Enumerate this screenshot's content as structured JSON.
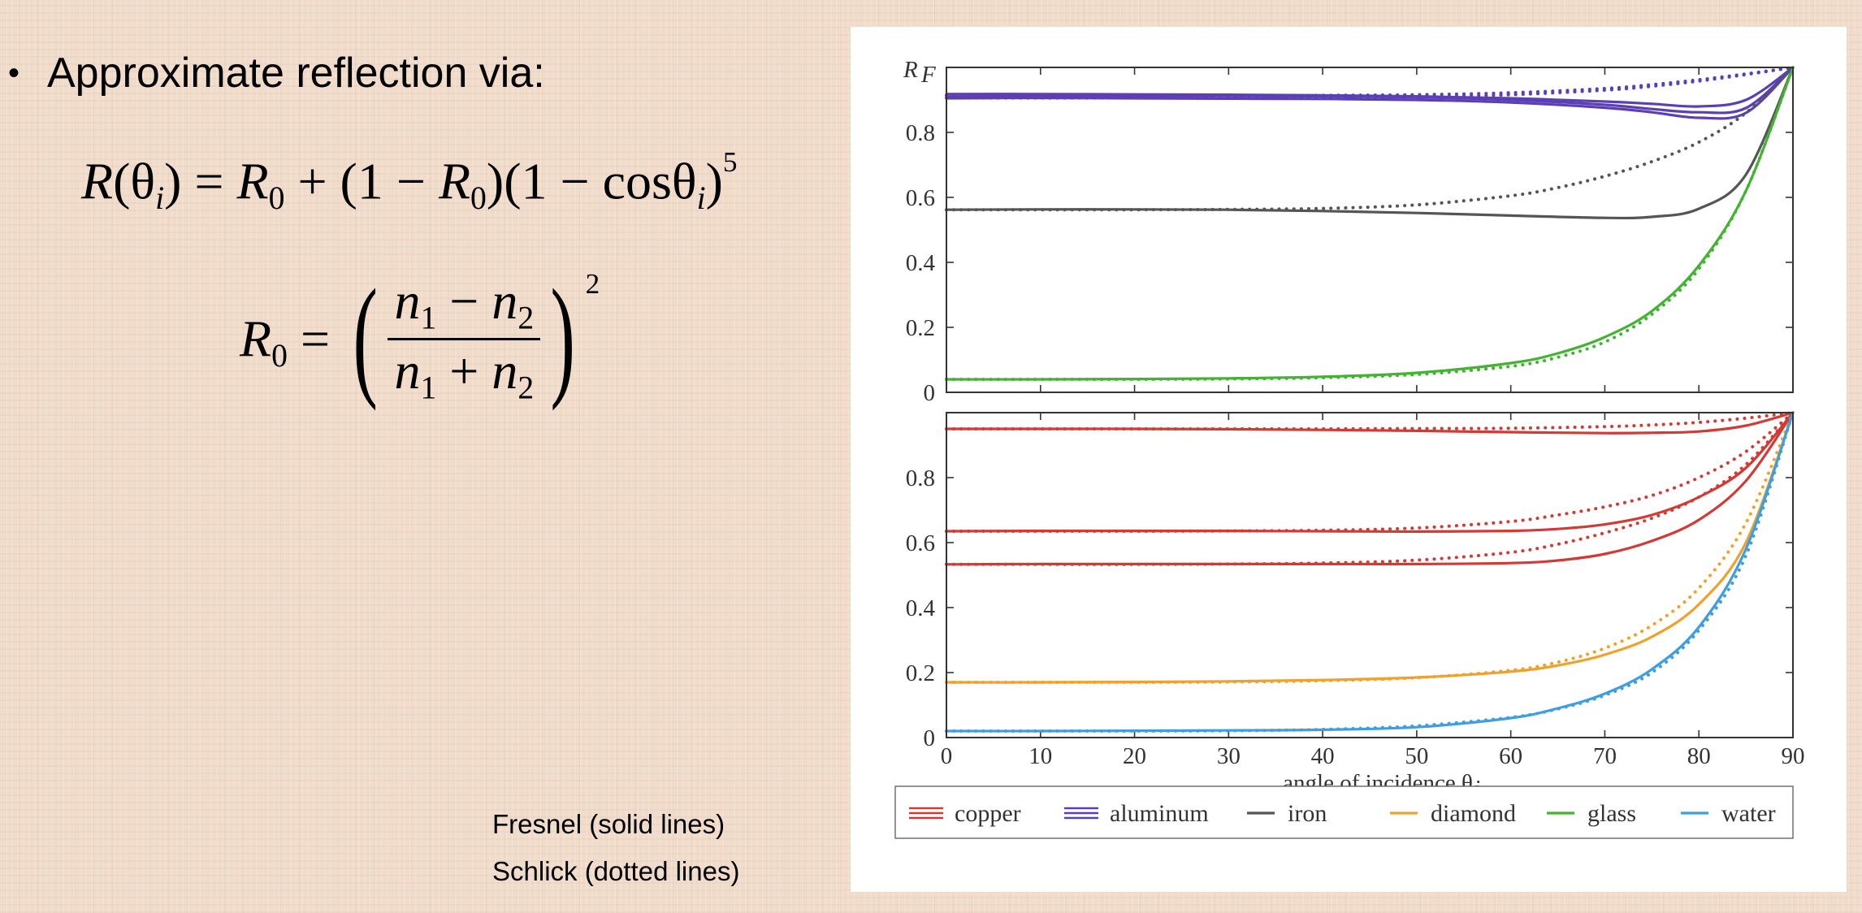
{
  "slide": {
    "bullet_text": "Approximate reflection via:",
    "notes": {
      "line1": "Fresnel (solid lines)",
      "line2": "Schlick (dotted lines)"
    }
  },
  "chart_data": [
    {
      "type": "line",
      "panel": "top",
      "ylabel": "R",
      "ylabel_sub": "F",
      "xlim": [
        0,
        90
      ],
      "ylim": [
        0,
        1
      ],
      "y_ticks": [
        "0",
        "0.2",
        "0.4",
        "0.6",
        "0.8"
      ],
      "y_tick_values": [
        0,
        0.2,
        0.4,
        0.6,
        0.8
      ],
      "grid": false,
      "series": [
        {
          "name": "aluminum",
          "color": "#5b3fb5",
          "style": "solid",
          "x": [
            0,
            10,
            20,
            30,
            40,
            50,
            60,
            70,
            75,
            80,
            85,
            90
          ],
          "y": [
            0.91,
            0.912,
            0.912,
            0.912,
            0.911,
            0.908,
            0.9,
            0.885,
            0.872,
            0.862,
            0.875,
            1.0
          ]
        },
        {
          "name": "aluminum",
          "color": "#5b3fb5",
          "style": "solid",
          "x": [
            0,
            10,
            20,
            30,
            40,
            50,
            60,
            70,
            75,
            80,
            85,
            90
          ],
          "y": [
            0.918,
            0.918,
            0.917,
            0.916,
            0.914,
            0.911,
            0.905,
            0.895,
            0.888,
            0.88,
            0.9,
            1.0
          ]
        },
        {
          "name": "aluminum",
          "color": "#5b3fb5",
          "style": "solid",
          "x": [
            0,
            10,
            20,
            30,
            40,
            50,
            60,
            70,
            75,
            80,
            85,
            90
          ],
          "y": [
            0.905,
            0.906,
            0.905,
            0.904,
            0.903,
            0.9,
            0.892,
            0.876,
            0.862,
            0.845,
            0.86,
            1.0
          ]
        },
        {
          "name": "aluminum",
          "color": "#5b3fb5",
          "style": "dotted",
          "x": [
            0,
            10,
            20,
            30,
            40,
            50,
            60,
            70,
            75,
            80,
            85,
            90
          ],
          "y": [
            0.913,
            0.913,
            0.913,
            0.913,
            0.914,
            0.916,
            0.922,
            0.935,
            0.947,
            0.962,
            0.98,
            1.0
          ]
        },
        {
          "name": "aluminum",
          "color": "#5b3fb5",
          "style": "dotted",
          "x": [
            0,
            10,
            20,
            30,
            40,
            50,
            60,
            70,
            75,
            80,
            85,
            90
          ],
          "y": [
            0.906,
            0.906,
            0.906,
            0.906,
            0.907,
            0.909,
            0.916,
            0.93,
            0.942,
            0.958,
            0.978,
            1.0
          ]
        },
        {
          "name": "iron",
          "color": "#555555",
          "style": "solid",
          "x": [
            0,
            10,
            20,
            30,
            40,
            50,
            60,
            70,
            75,
            80,
            85,
            90
          ],
          "y": [
            0.562,
            0.563,
            0.563,
            0.562,
            0.558,
            0.552,
            0.544,
            0.537,
            0.54,
            0.565,
            0.67,
            1.0
          ]
        },
        {
          "name": "iron",
          "color": "#555555",
          "style": "dotted",
          "x": [
            0,
            10,
            20,
            30,
            40,
            50,
            60,
            65,
            70,
            75,
            80,
            85,
            90
          ],
          "y": [
            0.562,
            0.562,
            0.562,
            0.563,
            0.566,
            0.577,
            0.605,
            0.63,
            0.665,
            0.71,
            0.77,
            0.86,
            1.0
          ]
        },
        {
          "name": "glass",
          "color": "#44b233",
          "style": "solid",
          "x": [
            0,
            10,
            20,
            30,
            40,
            50,
            60,
            65,
            70,
            75,
            80,
            85,
            90
          ],
          "y": [
            0.04,
            0.04,
            0.041,
            0.043,
            0.048,
            0.06,
            0.09,
            0.12,
            0.17,
            0.25,
            0.39,
            0.62,
            1.0
          ]
        },
        {
          "name": "glass",
          "color": "#44b233",
          "style": "dotted",
          "x": [
            0,
            10,
            20,
            30,
            40,
            50,
            60,
            65,
            70,
            75,
            80,
            85,
            90
          ],
          "y": [
            0.04,
            0.04,
            0.04,
            0.041,
            0.045,
            0.055,
            0.08,
            0.108,
            0.155,
            0.24,
            0.38,
            0.62,
            1.0
          ]
        }
      ]
    },
    {
      "type": "line",
      "panel": "bottom",
      "xlabel": "angle of incidence θ",
      "xlabel_sub": "i",
      "xlim": [
        0,
        90
      ],
      "ylim": [
        0,
        1
      ],
      "x_ticks": [
        "0",
        "10",
        "20",
        "30",
        "40",
        "50",
        "60",
        "70",
        "80",
        "90"
      ],
      "x_tick_values": [
        0,
        10,
        20,
        30,
        40,
        50,
        60,
        70,
        80,
        90
      ],
      "y_ticks": [
        "0",
        "0.2",
        "0.4",
        "0.6",
        "0.8"
      ],
      "y_tick_values": [
        0,
        0.2,
        0.4,
        0.6,
        0.8
      ],
      "grid": false,
      "legend_position": "bottom",
      "series": [
        {
          "name": "copper",
          "color": "#d23a35",
          "style": "solid",
          "x": [
            0,
            10,
            20,
            30,
            40,
            50,
            60,
            70,
            75,
            80,
            85,
            90
          ],
          "y": [
            0.95,
            0.95,
            0.95,
            0.949,
            0.947,
            0.944,
            0.94,
            0.937,
            0.938,
            0.942,
            0.96,
            1.0
          ]
        },
        {
          "name": "copper",
          "color": "#d23a35",
          "style": "dotted",
          "x": [
            0,
            10,
            20,
            30,
            40,
            50,
            60,
            70,
            75,
            80,
            85,
            90
          ],
          "y": [
            0.95,
            0.95,
            0.95,
            0.95,
            0.95,
            0.951,
            0.952,
            0.957,
            0.962,
            0.97,
            0.983,
            1.0
          ]
        },
        {
          "name": "copper",
          "color": "#d23a35",
          "style": "solid",
          "x": [
            0,
            10,
            20,
            30,
            40,
            50,
            60,
            65,
            70,
            75,
            80,
            85,
            90
          ],
          "y": [
            0.635,
            0.636,
            0.636,
            0.636,
            0.635,
            0.634,
            0.636,
            0.642,
            0.656,
            0.685,
            0.74,
            0.83,
            1.0
          ]
        },
        {
          "name": "copper",
          "color": "#d23a35",
          "style": "dotted",
          "x": [
            0,
            10,
            20,
            30,
            40,
            50,
            60,
            65,
            70,
            75,
            80,
            85,
            90
          ],
          "y": [
            0.635,
            0.635,
            0.635,
            0.636,
            0.638,
            0.645,
            0.665,
            0.685,
            0.71,
            0.745,
            0.8,
            0.88,
            1.0
          ]
        },
        {
          "name": "copper",
          "color": "#d23a35",
          "style": "solid",
          "x": [
            0,
            10,
            20,
            30,
            40,
            50,
            60,
            65,
            70,
            75,
            80,
            85,
            90
          ],
          "y": [
            0.533,
            0.534,
            0.534,
            0.534,
            0.534,
            0.534,
            0.537,
            0.545,
            0.565,
            0.605,
            0.67,
            0.79,
            1.0
          ]
        },
        {
          "name": "copper",
          "color": "#d23a35",
          "style": "dotted",
          "x": [
            0,
            10,
            20,
            30,
            40,
            50,
            60,
            65,
            70,
            75,
            80,
            85,
            90
          ],
          "y": [
            0.533,
            0.533,
            0.533,
            0.534,
            0.537,
            0.546,
            0.57,
            0.595,
            0.63,
            0.675,
            0.74,
            0.84,
            1.0
          ]
        },
        {
          "name": "diamond",
          "color": "#f0a12c",
          "style": "solid",
          "x": [
            0,
            10,
            20,
            30,
            40,
            50,
            60,
            65,
            70,
            75,
            80,
            85,
            90
          ],
          "y": [
            0.17,
            0.17,
            0.171,
            0.173,
            0.177,
            0.185,
            0.203,
            0.222,
            0.255,
            0.31,
            0.41,
            0.6,
            1.0
          ]
        },
        {
          "name": "diamond",
          "color": "#f0a12c",
          "style": "dotted",
          "x": [
            0,
            10,
            20,
            30,
            40,
            50,
            60,
            65,
            70,
            75,
            80,
            85,
            90
          ],
          "y": [
            0.17,
            0.17,
            0.17,
            0.171,
            0.175,
            0.184,
            0.207,
            0.232,
            0.275,
            0.345,
            0.46,
            0.66,
            1.0
          ]
        },
        {
          "name": "water",
          "color": "#3e9ee0",
          "style": "solid",
          "x": [
            0,
            10,
            20,
            30,
            40,
            50,
            60,
            65,
            70,
            75,
            80,
            85,
            90
          ],
          "y": [
            0.02,
            0.02,
            0.021,
            0.022,
            0.024,
            0.032,
            0.06,
            0.09,
            0.135,
            0.21,
            0.34,
            0.58,
            1.0
          ]
        },
        {
          "name": "water",
          "color": "#3e9ee0",
          "style": "dotted",
          "x": [
            0,
            10,
            20,
            30,
            40,
            50,
            60,
            65,
            70,
            75,
            80,
            85,
            90
          ],
          "y": [
            0.02,
            0.02,
            0.02,
            0.021,
            0.025,
            0.036,
            0.062,
            0.088,
            0.13,
            0.2,
            0.33,
            0.56,
            1.0
          ]
        }
      ]
    }
  ],
  "legend": [
    {
      "name": "copper",
      "color": "#d23a35",
      "lines": 3
    },
    {
      "name": "aluminum",
      "color": "#5b3fb5",
      "lines": 3
    },
    {
      "name": "iron",
      "color": "#555555",
      "lines": 1
    },
    {
      "name": "diamond",
      "color": "#f0a12c",
      "lines": 1
    },
    {
      "name": "glass",
      "color": "#44b233",
      "lines": 1
    },
    {
      "name": "water",
      "color": "#3e9ee0",
      "lines": 1
    }
  ]
}
